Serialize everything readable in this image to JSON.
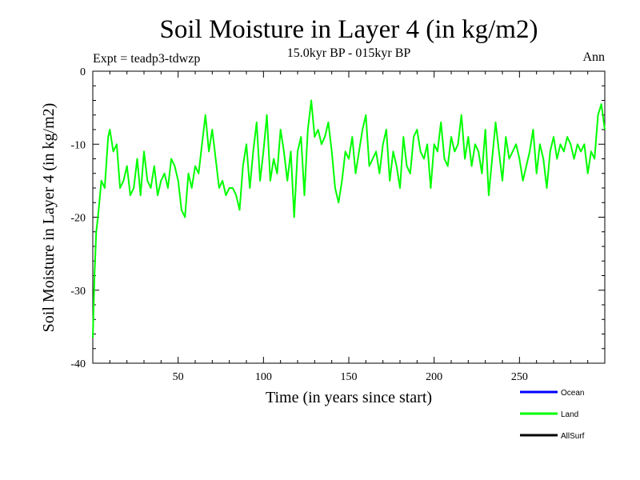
{
  "chart_data": {
    "type": "line",
    "title": "Soil Moisture in Layer 4 (in kg/m2)",
    "subtitle": "15.0kyr BP - 015kyr BP",
    "experiment_label": "Expt = teadp3-tdwzp",
    "season_label": "Ann",
    "xlabel": "Time (in years since start)",
    "ylabel": "Soil Moisture in Layer 4 (in kg/m2)",
    "xlim": [
      0,
      300
    ],
    "ylim": [
      -40,
      0
    ],
    "x_ticks": [
      50,
      100,
      150,
      200,
      250
    ],
    "y_ticks": [
      0,
      -10,
      -20,
      -30,
      -40
    ],
    "colors": {
      "Ocean": "#0000ff",
      "Land": "#00ff00",
      "AllSurf": "#000000"
    },
    "legend": [
      "Ocean",
      "Land",
      "AllSurf"
    ],
    "series": [
      {
        "name": "Land",
        "x": [
          0,
          1,
          2,
          3,
          5,
          7,
          9,
          10,
          12,
          14,
          16,
          18,
          20,
          22,
          24,
          26,
          28,
          30,
          32,
          34,
          36,
          38,
          40,
          42,
          44,
          46,
          48,
          50,
          52,
          54,
          56,
          58,
          60,
          62,
          64,
          66,
          68,
          70,
          72,
          74,
          76,
          78,
          80,
          82,
          84,
          86,
          88,
          90,
          92,
          94,
          96,
          98,
          100,
          102,
          104,
          106,
          108,
          110,
          112,
          114,
          116,
          118,
          120,
          122,
          124,
          126,
          128,
          130,
          132,
          134,
          136,
          138,
          140,
          142,
          144,
          146,
          148,
          150,
          152,
          154,
          156,
          158,
          160,
          162,
          164,
          166,
          168,
          170,
          172,
          174,
          176,
          178,
          180,
          182,
          184,
          186,
          188,
          190,
          192,
          194,
          196,
          198,
          200,
          202,
          204,
          206,
          208,
          210,
          212,
          214,
          216,
          218,
          220,
          222,
          224,
          226,
          228,
          230,
          232,
          234,
          236,
          238,
          240,
          242,
          244,
          246,
          248,
          250,
          252,
          254,
          256,
          258,
          260,
          262,
          264,
          266,
          268,
          270,
          272,
          274,
          276,
          278,
          280,
          282,
          284,
          286,
          288,
          290,
          292,
          294,
          296,
          298,
          300
        ],
        "values": [
          -36.5,
          -28,
          -22,
          -20,
          -15,
          -16,
          -9,
          -8,
          -11,
          -10,
          -16,
          -15,
          -13,
          -17,
          -16,
          -12,
          -17,
          -11,
          -15,
          -16,
          -13,
          -17,
          -15,
          -14,
          -16,
          -12,
          -13,
          -15,
          -19,
          -20,
          -14,
          -16,
          -13,
          -14,
          -10,
          -6,
          -11,
          -8,
          -12,
          -16,
          -15,
          -17,
          -16,
          -16,
          -17,
          -19,
          -13,
          -10,
          -16,
          -11,
          -7,
          -15,
          -11,
          -6,
          -15,
          -12,
          -14,
          -8,
          -11,
          -15,
          -11,
          -20,
          -11,
          -9,
          -17,
          -8,
          -4,
          -9,
          -8,
          -10,
          -9,
          -7,
          -11,
          -16,
          -18,
          -15,
          -11,
          -12,
          -9,
          -14,
          -11,
          -8,
          -6,
          -13,
          -12,
          -11,
          -14,
          -10,
          -8,
          -15,
          -11,
          -13,
          -16,
          -9,
          -13,
          -14,
          -9,
          -8,
          -11,
          -12,
          -10,
          -16,
          -10,
          -11,
          -7,
          -12,
          -13,
          -9,
          -11,
          -10,
          -6,
          -12,
          -9,
          -13,
          -10,
          -11,
          -14,
          -8,
          -17,
          -12,
          -7,
          -11,
          -15,
          -9,
          -12,
          -11,
          -10,
          -12,
          -15,
          -13,
          -11,
          -8,
          -14,
          -10,
          -12,
          -16,
          -11,
          -9,
          -12,
          -10,
          -11,
          -9,
          -10,
          -12,
          -10,
          -11,
          -10,
          -14,
          -11,
          -12,
          -6,
          -4.5,
          -8
        ]
      }
    ]
  }
}
